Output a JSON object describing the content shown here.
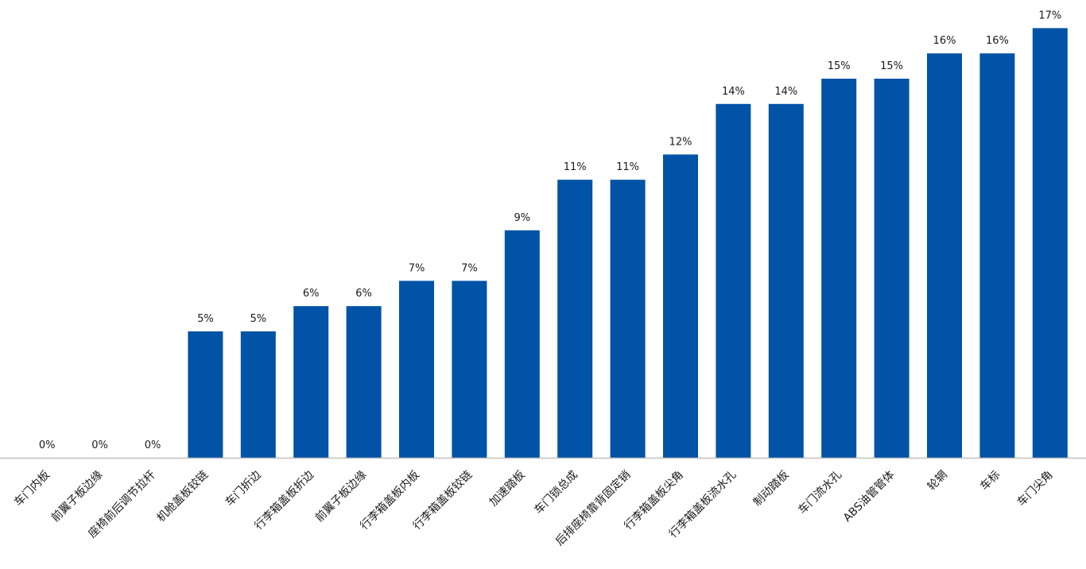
{
  "chart_data": {
    "type": "bar",
    "title": "",
    "xlabel": "",
    "ylabel": "",
    "ylim": [
      0,
      17
    ],
    "grid": false,
    "legend": "none",
    "bar_color": "#0053A6",
    "axis_color": "#BFBFBF",
    "label_color": "#1A1A1A",
    "categories": [
      "车门内板",
      "前翼子板边缘",
      "座椅前后调节拉杆",
      "机舱盖板铰链",
      "车门折边",
      "行李箱盖板折边",
      "前翼子板边缘",
      "行李箱盖板内板",
      "行李箱盖板铰链",
      "加速踏板",
      "车门锁总成",
      "后排座椅靠背固定销",
      "行李箱盖板尖角",
      "行李箱盖板流水孔",
      "制动踏板",
      "车门流水孔",
      "ABS油管管体",
      "轮辋",
      "车标",
      "车门尖角"
    ],
    "values": [
      0,
      0,
      0,
      5,
      5,
      6,
      6,
      7,
      7,
      9,
      11,
      11,
      12,
      14,
      14,
      15,
      15,
      16,
      16,
      17
    ],
    "data_labels": [
      "0%",
      "0%",
      "0%",
      "5%",
      "5%",
      "6%",
      "6%",
      "7%",
      "7%",
      "9%",
      "11%",
      "11%",
      "12%",
      "14%",
      "14%",
      "15%",
      "15%",
      "16%",
      "16%",
      "17%"
    ]
  }
}
